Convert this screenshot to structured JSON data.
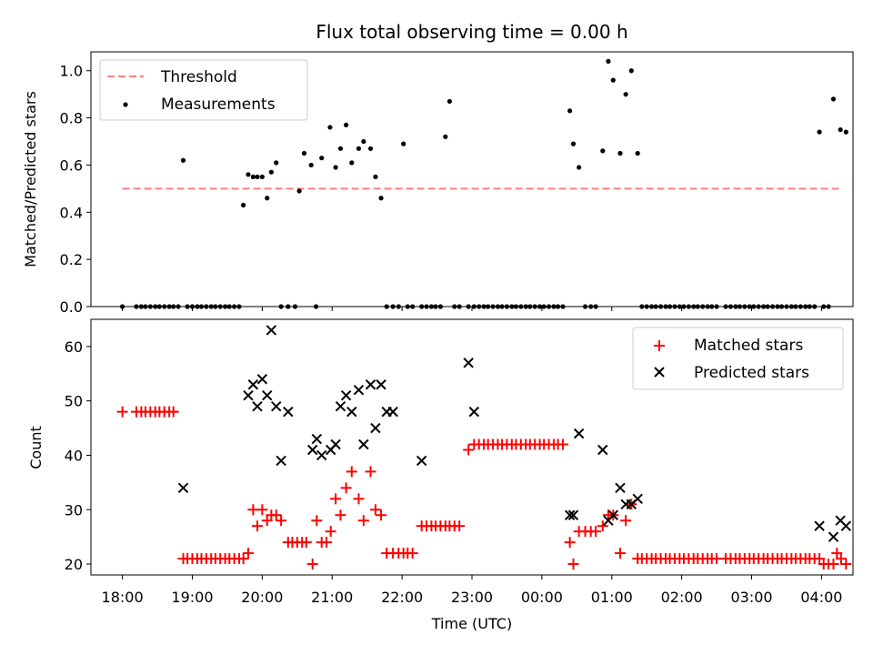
{
  "chart_data": [
    {
      "type": "scatter",
      "title": "Flux total observing time = 0.00 h",
      "xlabel": "",
      "ylabel": "Matched/Predicted stars",
      "ylim": [
        0,
        1.08
      ],
      "yticks": [
        0.0,
        0.2,
        0.4,
        0.6,
        0.8,
        1.0
      ],
      "ytick_labels": [
        "0.0",
        "0.2",
        "0.4",
        "0.6",
        "0.8",
        "1.0"
      ],
      "xlim_hours": [
        17.55,
        28.45
      ],
      "legend_position": "top-left",
      "series": [
        {
          "name": "Threshold",
          "style": "dashed-line",
          "color": "#ff7f7f",
          "x": [
            18.0,
            28.3
          ],
          "y": [
            0.5,
            0.5
          ]
        },
        {
          "name": "Measurements",
          "style": "dot",
          "color": "#000000",
          "x": [
            18.0,
            18.2,
            18.27,
            18.33,
            18.4,
            18.47,
            18.53,
            18.6,
            18.67,
            18.73,
            18.8,
            18.87,
            18.93,
            19.0,
            19.07,
            19.13,
            19.2,
            19.27,
            19.33,
            19.4,
            19.47,
            19.53,
            19.6,
            19.67,
            19.73,
            19.8,
            19.87,
            19.93,
            20.0,
            20.07,
            20.13,
            20.2,
            20.27,
            20.37,
            20.47,
            20.53,
            20.6,
            20.7,
            20.77,
            20.85,
            20.97,
            21.05,
            21.12,
            21.2,
            21.28,
            21.38,
            21.45,
            21.55,
            21.62,
            21.7,
            21.78,
            21.87,
            21.95,
            22.02,
            22.08,
            22.15,
            22.28,
            22.35,
            22.42,
            22.48,
            22.55,
            22.62,
            22.68,
            22.75,
            22.82,
            22.95,
            23.03,
            23.1,
            23.17,
            23.23,
            23.3,
            23.37,
            23.43,
            23.5,
            23.57,
            23.63,
            23.7,
            23.77,
            23.83,
            23.9,
            23.97,
            24.03,
            24.1,
            24.17,
            24.23,
            24.3,
            24.4,
            24.45,
            24.53,
            24.62,
            24.7,
            24.77,
            24.87,
            24.95,
            25.02,
            25.12,
            25.2,
            25.28,
            25.37,
            25.43,
            25.5,
            25.57,
            25.63,
            25.7,
            25.77,
            25.83,
            25.9,
            25.97,
            26.03,
            26.1,
            26.17,
            26.23,
            26.3,
            26.37,
            26.43,
            26.5,
            26.63,
            26.7,
            26.77,
            26.83,
            26.9,
            26.97,
            27.03,
            27.1,
            27.17,
            27.23,
            27.3,
            27.37,
            27.43,
            27.5,
            27.57,
            27.63,
            27.7,
            27.77,
            27.83,
            27.9,
            27.97,
            28.03,
            28.1,
            28.17,
            28.27,
            28.35
          ],
          "y": [
            0.0,
            0.0,
            0.0,
            0.0,
            0.0,
            0.0,
            0.0,
            0.0,
            0.0,
            0.0,
            0.0,
            0.62,
            0.0,
            0.0,
            0.0,
            0.0,
            0.0,
            0.0,
            0.0,
            0.0,
            0.0,
            0.0,
            0.0,
            0.0,
            0.43,
            0.56,
            0.55,
            0.55,
            0.55,
            0.46,
            0.57,
            0.61,
            0.0,
            0.0,
            0.0,
            0.49,
            0.65,
            0.6,
            0.0,
            0.63,
            0.76,
            0.59,
            0.67,
            0.77,
            0.61,
            0.67,
            0.7,
            0.67,
            0.55,
            0.46,
            0.0,
            0.0,
            0.0,
            0.69,
            0.0,
            0.0,
            0.0,
            0.0,
            0.0,
            0.0,
            0.0,
            0.72,
            0.87,
            0.0,
            0.0,
            0.0,
            0.0,
            0.0,
            0.0,
            0.0,
            0.0,
            0.0,
            0.0,
            0.0,
            0.0,
            0.0,
            0.0,
            0.0,
            0.0,
            0.0,
            0.0,
            0.0,
            0.0,
            0.0,
            0.0,
            0.0,
            0.83,
            0.69,
            0.59,
            0.0,
            0.0,
            0.0,
            0.66,
            1.04,
            0.96,
            0.65,
            0.9,
            1.0,
            0.65,
            0.0,
            0.0,
            0.0,
            0.0,
            0.0,
            0.0,
            0.0,
            0.0,
            0.0,
            0.0,
            0.0,
            0.0,
            0.0,
            0.0,
            0.0,
            0.0,
            0.0,
            0.0,
            0.0,
            0.0,
            0.0,
            0.0,
            0.0,
            0.0,
            0.0,
            0.0,
            0.0,
            0.0,
            0.0,
            0.0,
            0.0,
            0.0,
            0.0,
            0.0,
            0.0,
            0.0,
            0.0,
            0.74,
            0.0,
            0.0,
            0.88,
            0.75,
            0.74
          ]
        }
      ]
    },
    {
      "type": "scatter",
      "title": "",
      "xlabel": "Time (UTC)",
      "ylabel": "Count",
      "ylim": [
        18,
        65
      ],
      "yticks": [
        20,
        30,
        40,
        50,
        60
      ],
      "ytick_labels": [
        "20",
        "30",
        "40",
        "50",
        "60"
      ],
      "xlim_hours": [
        17.55,
        28.45
      ],
      "xticks_hours": [
        18,
        19,
        20,
        21,
        22,
        23,
        24,
        25,
        26,
        27,
        28
      ],
      "xtick_labels": [
        "18:00",
        "19:00",
        "20:00",
        "21:00",
        "22:00",
        "23:00",
        "00:00",
        "01:00",
        "02:00",
        "03:00",
        "04:00"
      ],
      "legend_position": "top-right",
      "series": [
        {
          "name": "Matched stars",
          "style": "plus",
          "color": "#ff0000",
          "x": [
            18.0,
            18.2,
            18.27,
            18.33,
            18.4,
            18.47,
            18.53,
            18.6,
            18.67,
            18.73,
            18.87,
            18.93,
            19.0,
            19.07,
            19.13,
            19.2,
            19.27,
            19.33,
            19.4,
            19.47,
            19.53,
            19.6,
            19.67,
            19.73,
            19.8,
            19.87,
            19.93,
            20.0,
            20.07,
            20.13,
            20.2,
            20.27,
            20.37,
            20.43,
            20.5,
            20.57,
            20.63,
            20.72,
            20.78,
            20.85,
            20.92,
            20.98,
            21.05,
            21.12,
            21.2,
            21.28,
            21.38,
            21.45,
            21.55,
            21.62,
            21.7,
            21.78,
            21.87,
            21.95,
            22.02,
            22.08,
            22.15,
            22.28,
            22.35,
            22.42,
            22.48,
            22.55,
            22.62,
            22.68,
            22.75,
            22.82,
            22.95,
            23.03,
            23.1,
            23.17,
            23.23,
            23.3,
            23.37,
            23.43,
            23.5,
            23.57,
            23.63,
            23.7,
            23.77,
            23.83,
            23.9,
            23.97,
            24.03,
            24.1,
            24.17,
            24.23,
            24.3,
            24.4,
            24.45,
            24.53,
            24.62,
            24.7,
            24.77,
            24.87,
            24.95,
            25.02,
            25.12,
            25.2,
            25.28,
            25.37,
            25.43,
            25.5,
            25.57,
            25.63,
            25.7,
            25.77,
            25.83,
            25.9,
            25.97,
            26.03,
            26.1,
            26.17,
            26.23,
            26.3,
            26.37,
            26.43,
            26.5,
            26.63,
            26.7,
            26.77,
            26.83,
            26.9,
            26.97,
            27.03,
            27.1,
            27.17,
            27.23,
            27.3,
            27.37,
            27.43,
            27.5,
            27.57,
            27.63,
            27.7,
            27.77,
            27.83,
            27.9,
            27.97,
            28.03,
            28.1,
            28.17,
            28.22,
            28.28,
            28.35
          ],
          "y": [
            48,
            48,
            48,
            48,
            48,
            48,
            48,
            48,
            48,
            48,
            21,
            21,
            21,
            21,
            21,
            21,
            21,
            21,
            21,
            21,
            21,
            21,
            21,
            21,
            22,
            30,
            27,
            30,
            28,
            29,
            29,
            28,
            24,
            24,
            24,
            24,
            24,
            20,
            28,
            24,
            24,
            26,
            32,
            29,
            34,
            37,
            32,
            28,
            37,
            30,
            29,
            22,
            22,
            22,
            22,
            22,
            22,
            27,
            27,
            27,
            27,
            27,
            27,
            27,
            27,
            27,
            41,
            42,
            42,
            42,
            42,
            42,
            42,
            42,
            42,
            42,
            42,
            42,
            42,
            42,
            42,
            42,
            42,
            42,
            42,
            42,
            42,
            24,
            20,
            26,
            26,
            26,
            26,
            27,
            29,
            29,
            22,
            28,
            31,
            21,
            21,
            21,
            21,
            21,
            21,
            21,
            21,
            21,
            21,
            21,
            21,
            21,
            21,
            21,
            21,
            21,
            21,
            21,
            21,
            21,
            21,
            21,
            21,
            21,
            21,
            21,
            21,
            21,
            21,
            21,
            21,
            21,
            21,
            21,
            21,
            21,
            21,
            21,
            20,
            20,
            20,
            22,
            21,
            20
          ]
        },
        {
          "name": "Predicted stars",
          "style": "x",
          "color": "#000000",
          "x": [
            18.87,
            19.8,
            19.87,
            19.93,
            20.0,
            20.07,
            20.13,
            20.2,
            20.27,
            20.37,
            20.72,
            20.78,
            20.85,
            20.98,
            21.05,
            21.12,
            21.2,
            21.28,
            21.38,
            21.45,
            21.55,
            21.62,
            21.7,
            21.78,
            21.87,
            22.28,
            22.95,
            23.03,
            24.4,
            24.45,
            24.53,
            24.87,
            24.95,
            25.02,
            25.12,
            25.2,
            25.28,
            25.37,
            27.97,
            28.17,
            28.27,
            28.35
          ],
          "y": [
            34,
            51,
            53,
            49,
            54,
            51,
            63,
            49,
            39,
            48,
            41,
            43,
            40,
            41,
            42,
            49,
            51,
            48,
            52,
            42,
            53,
            45,
            53,
            48,
            48,
            39,
            57,
            48,
            29,
            29,
            44,
            41,
            28,
            29,
            34,
            31,
            31,
            32,
            27,
            25,
            28,
            27
          ]
        }
      ]
    }
  ]
}
